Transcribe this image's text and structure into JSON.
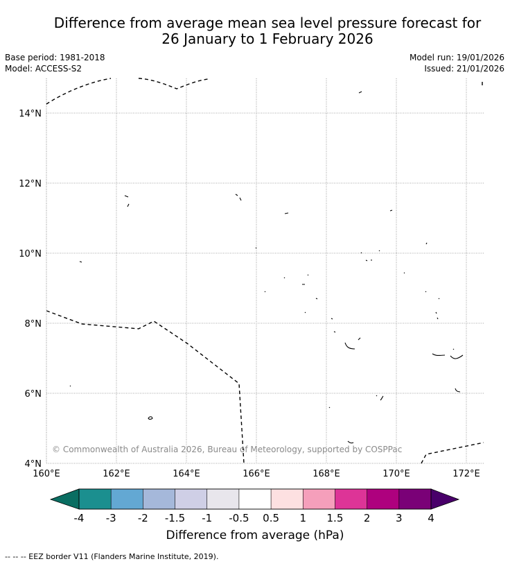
{
  "title": {
    "line1": "Difference from average mean sea level pressure forecast for",
    "line2": "26 January to 1 February 2026"
  },
  "meta": {
    "base_period": "Base period: 1981-2018",
    "model": "Model: ACCESS-S2",
    "model_run": "Model run: 19/01/2026",
    "issued": "Issued: 21/01/2026"
  },
  "map": {
    "lat_labels": [
      "14°N",
      "12°N",
      "10°N",
      "8°N",
      "6°N",
      "4°N"
    ],
    "lon_labels": [
      "160°E",
      "162°E",
      "164°E",
      "166°E",
      "168°E",
      "170°E",
      "172°E"
    ],
    "copyright": "© Commonwealth of Australia 2026, Bureau of Meteorology, supported by COSPPac",
    "border_color": "#000000",
    "grid_color": "#888888"
  },
  "colorbar": {
    "ticks": [
      "-4",
      "-3",
      "-2",
      "-1.5",
      "-1",
      "-0.5",
      "0.5",
      "1",
      "1.5",
      "2",
      "3",
      "4"
    ],
    "colors": [
      "#1b8f8f",
      "#63a8d3",
      "#a5b8da",
      "#cfcfe6",
      "#e8e6ec",
      "#ffffff",
      "#fde0e1",
      "#f59fbb",
      "#dd3497",
      "#ae017e",
      "#7a0177"
    ],
    "under_color": "#0a6e62",
    "over_color": "#49006a",
    "label": "Difference from average (hPa)"
  },
  "footnote": "--  --  -- EEZ border V11 (Flanders Marine Institute, 2019)."
}
